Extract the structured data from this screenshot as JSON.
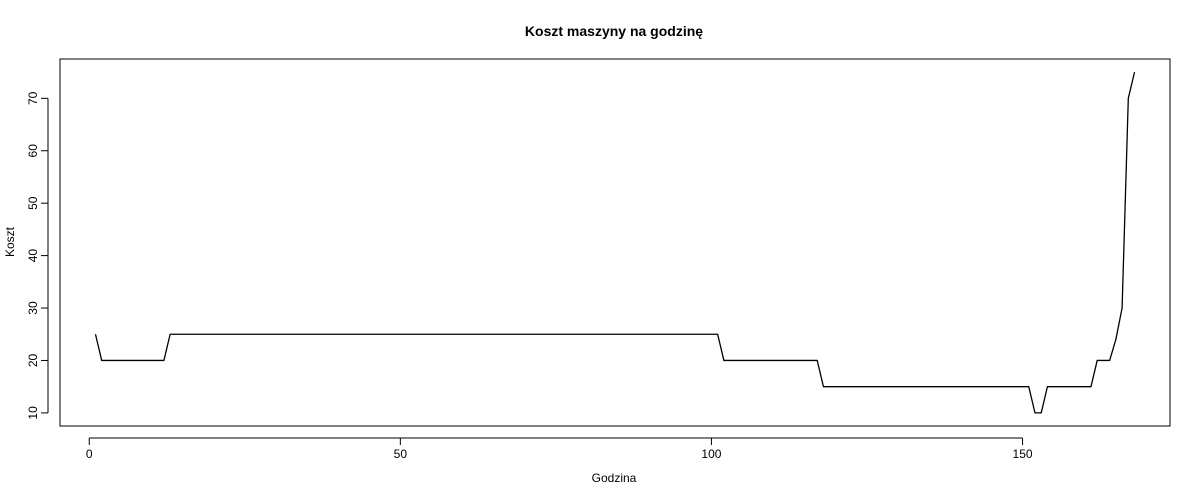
{
  "chart_data": {
    "type": "line",
    "title": "Koszt maszyny na godzinę",
    "xlabel": "Godzina",
    "ylabel": "Koszt",
    "xlim": [
      -4.7,
      173.7
    ],
    "ylim": [
      7.5,
      77.5
    ],
    "xticks": [
      0,
      50,
      100,
      150
    ],
    "yticks": [
      10,
      20,
      30,
      40,
      50,
      60,
      70
    ],
    "grid": false,
    "series": [
      {
        "color": "#000000",
        "points": [
          [
            1,
            25
          ],
          [
            2,
            20
          ],
          [
            12,
            20
          ],
          [
            13,
            25
          ],
          [
            101,
            25
          ],
          [
            102,
            20
          ],
          [
            117,
            20
          ],
          [
            118,
            15
          ],
          [
            151,
            15
          ],
          [
            152,
            10
          ],
          [
            153,
            10
          ],
          [
            154,
            15
          ],
          [
            161,
            15
          ],
          [
            162,
            20
          ],
          [
            164,
            20
          ],
          [
            165,
            24
          ],
          [
            166,
            30
          ],
          [
            167,
            70
          ],
          [
            168,
            75
          ]
        ]
      }
    ]
  }
}
